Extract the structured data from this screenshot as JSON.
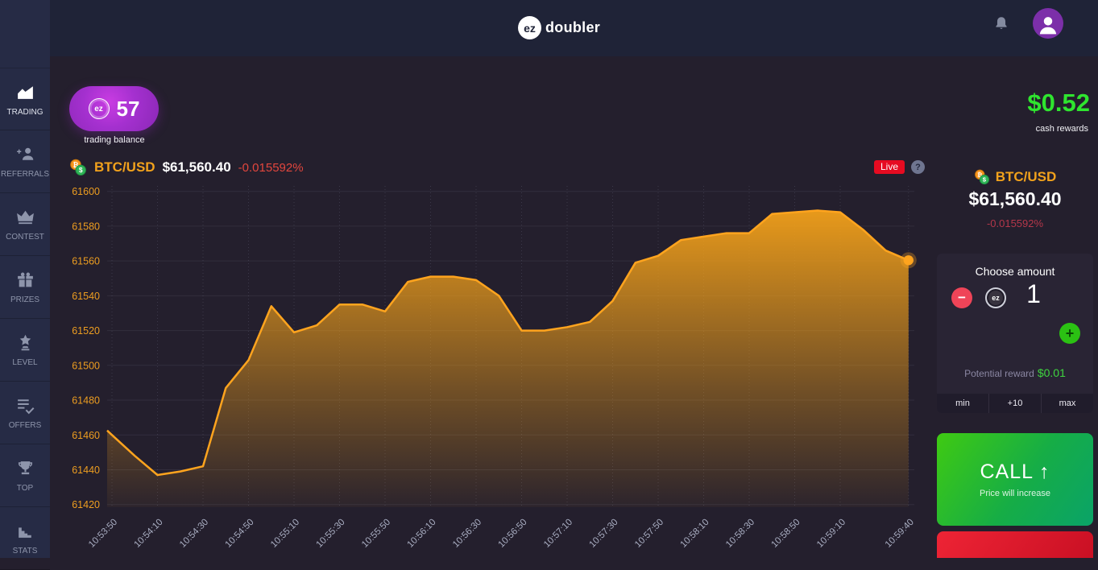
{
  "topbar": {
    "logo_circle": "ez",
    "logo_rest": "doubler"
  },
  "sidebar": {
    "items": [
      {
        "label": "TRADING",
        "icon": "trading-chart",
        "active": true
      },
      {
        "label": "REFERRALS",
        "icon": "referrals-people",
        "active": false
      },
      {
        "label": "CONTEST",
        "icon": "contest-crown",
        "active": false
      },
      {
        "label": "PRIZES",
        "icon": "prizes-gift",
        "active": false
      },
      {
        "label": "LEVEL",
        "icon": "level-star",
        "active": false
      },
      {
        "label": "OFFERS",
        "icon": "offers-list",
        "active": false
      },
      {
        "label": "TOP",
        "icon": "top-trophy",
        "active": false
      },
      {
        "label": "STATS",
        "icon": "stats-bars",
        "active": false
      }
    ]
  },
  "balance": {
    "value": "57",
    "coin_label": "ez",
    "label": "trading balance"
  },
  "instrument": {
    "pair": "BTC/USD",
    "price": "$61,560.40",
    "change": "-0.015592%",
    "live_label": "Live"
  },
  "icons": {
    "btc_glyph": "₿",
    "usd_glyph": "$",
    "help_glyph": "?",
    "arrow_up_glyph": "↑",
    "minus_glyph": "−",
    "plus_glyph": "+"
  },
  "rewards": {
    "amount": "$0.52",
    "label": "cash rewards"
  },
  "ticket": {
    "title": "Choose amount",
    "amount": "1",
    "coin_label": "ez",
    "potential_label": "Potential reward",
    "potential_value": "$0.01",
    "min_label": "min",
    "plus10_label": "+10",
    "max_label": "max"
  },
  "call_button": {
    "label": "CALL",
    "sub": "Price will increase"
  },
  "colors": {
    "accent_orange": "#ffa41e",
    "accent_green": "#2fe52f",
    "accent_red": "#e60b21",
    "accent_purple": "#a430cf",
    "panel_bg": "#292434",
    "topbar_bg": "#1f2337",
    "sidebar_bg": "#262b45",
    "main_bg": "#241f2d"
  },
  "chart_data": {
    "type": "area",
    "symbol": "BTC/USD",
    "title": "",
    "xlabel": "",
    "ylabel": "",
    "grid": true,
    "legend": null,
    "marker": "last-point",
    "line_color": "#ffa41e",
    "fill_color": "#f2a01a",
    "ylim": [
      61420,
      61600
    ],
    "y_tick_step": 20,
    "y_ticks": [
      61600,
      61580,
      61560,
      61540,
      61520,
      61500,
      61480,
      61460,
      61440,
      61420
    ],
    "x_tick_labels": [
      "10:53:50",
      "10:54:10",
      "10:54:30",
      "10:54:50",
      "10:55:10",
      "10:55:30",
      "10:55:50",
      "10:56:10",
      "10:56:30",
      "10:56:50",
      "10:57:10",
      "10:57:30",
      "10:57:50",
      "10:58:10",
      "10:58:30",
      "10:58:50",
      "10:59:10",
      "10:59:40"
    ],
    "x": [
      "10:53:50",
      "10:54:00",
      "10:54:10",
      "10:54:20",
      "10:54:30",
      "10:54:40",
      "10:54:50",
      "10:55:00",
      "10:55:10",
      "10:55:20",
      "10:55:30",
      "10:55:40",
      "10:55:50",
      "10:56:00",
      "10:56:10",
      "10:56:20",
      "10:56:30",
      "10:56:40",
      "10:56:50",
      "10:57:00",
      "10:57:10",
      "10:57:20",
      "10:57:30",
      "10:57:40",
      "10:57:50",
      "10:58:00",
      "10:58:10",
      "10:58:20",
      "10:58:30",
      "10:58:40",
      "10:58:50",
      "10:59:00",
      "10:59:10",
      "10:59:20",
      "10:59:30",
      "10:59:40"
    ],
    "values": [
      61460,
      61448,
      61437,
      61439,
      61442,
      61487,
      61503,
      61534,
      61519,
      61523,
      61535,
      61535,
      61531,
      61548,
      61551,
      61551,
      61549,
      61540,
      61520,
      61520,
      61522,
      61525,
      61537,
      61559,
      61563,
      61572,
      61574,
      61576,
      61576,
      61587,
      61588,
      61589,
      61588,
      61578,
      61566,
      61560.4
    ]
  }
}
